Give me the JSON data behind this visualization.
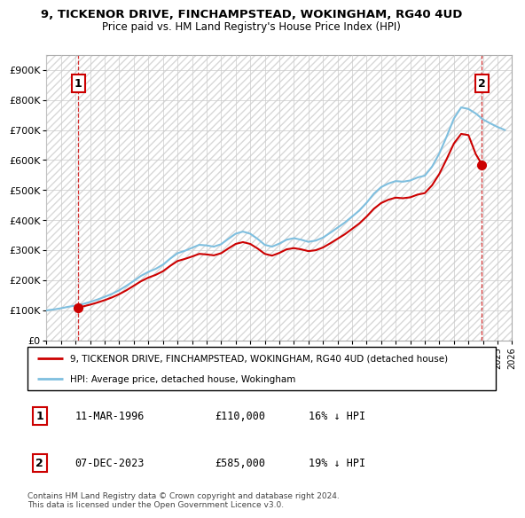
{
  "title_line1": "9, TICKENOR DRIVE, FINCHAMPSTEAD, WOKINGHAM, RG40 4UD",
  "title_line2": "Price paid vs. HM Land Registry's House Price Index (HPI)",
  "ylim": [
    0,
    950000
  ],
  "yticks": [
    0,
    100000,
    200000,
    300000,
    400000,
    500000,
    600000,
    700000,
    800000,
    900000
  ],
  "ytick_labels": [
    "£0",
    "£100K",
    "£200K",
    "£300K",
    "£400K",
    "£500K",
    "£600K",
    "£700K",
    "£800K",
    "£900K"
  ],
  "transaction1_year": 1996.18,
  "transaction1_price": 110000,
  "transaction2_year": 2023.93,
  "transaction2_price": 585000,
  "legend_line1": "9, TICKENOR DRIVE, FINCHAMPSTEAD, WOKINGHAM, RG40 4UD (detached house)",
  "legend_line2": "HPI: Average price, detached house, Wokingham",
  "table_row1": [
    "1",
    "11-MAR-1996",
    "£110,000",
    "16% ↓ HPI"
  ],
  "table_row2": [
    "2",
    "07-DEC-2023",
    "£585,000",
    "19% ↓ HPI"
  ],
  "footnote": "Contains HM Land Registry data © Crown copyright and database right 2024.\nThis data is licensed under the Open Government Licence v3.0.",
  "hpi_color": "#7fbfdf",
  "price_color": "#cc0000",
  "box_color": "#cc0000",
  "grid_color": "#cccccc",
  "hatch_color": "#d8d8d8",
  "years_hpi": [
    1994.0,
    1994.5,
    1995.0,
    1995.5,
    1996.0,
    1996.5,
    1997.0,
    1997.5,
    1998.0,
    1998.5,
    1999.0,
    1999.5,
    2000.0,
    2000.5,
    2001.0,
    2001.5,
    2002.0,
    2002.5,
    2003.0,
    2003.5,
    2004.0,
    2004.5,
    2005.0,
    2005.5,
    2006.0,
    2006.5,
    2007.0,
    2007.5,
    2008.0,
    2008.5,
    2009.0,
    2009.5,
    2010.0,
    2010.5,
    2011.0,
    2011.5,
    2012.0,
    2012.5,
    2013.0,
    2013.5,
    2014.0,
    2014.5,
    2015.0,
    2015.5,
    2016.0,
    2016.5,
    2017.0,
    2017.5,
    2018.0,
    2018.5,
    2019.0,
    2019.5,
    2020.0,
    2020.5,
    2021.0,
    2021.5,
    2022.0,
    2022.5,
    2023.0,
    2023.5,
    2024.0,
    2024.5,
    2025.0,
    2025.5
  ],
  "hpi_values": [
    100000,
    103000,
    107000,
    112000,
    116000,
    121000,
    128000,
    136000,
    145000,
    155000,
    167000,
    182000,
    198000,
    215000,
    228000,
    238000,
    252000,
    272000,
    290000,
    298000,
    308000,
    318000,
    316000,
    312000,
    320000,
    338000,
    355000,
    362000,
    355000,
    338000,
    318000,
    312000,
    322000,
    335000,
    340000,
    335000,
    328000,
    332000,
    342000,
    358000,
    375000,
    392000,
    412000,
    432000,
    458000,
    488000,
    510000,
    522000,
    530000,
    528000,
    532000,
    542000,
    548000,
    578000,
    622000,
    678000,
    738000,
    775000,
    770000,
    755000,
    735000,
    722000,
    710000,
    700000
  ],
  "years_red": [
    1996.18,
    1996.5,
    1997.0,
    1997.5,
    1998.0,
    1998.5,
    1999.0,
    1999.5,
    2000.0,
    2000.5,
    2001.0,
    2001.5,
    2002.0,
    2002.5,
    2003.0,
    2003.5,
    2004.0,
    2004.5,
    2005.0,
    2005.5,
    2006.0,
    2006.5,
    2007.0,
    2007.5,
    2008.0,
    2008.5,
    2009.0,
    2009.5,
    2010.0,
    2010.5,
    2011.0,
    2011.5,
    2012.0,
    2012.5,
    2013.0,
    2013.5,
    2014.0,
    2014.5,
    2015.0,
    2015.5,
    2016.0,
    2016.5,
    2017.0,
    2017.5,
    2018.0,
    2018.5,
    2019.0,
    2019.5,
    2020.0,
    2020.5,
    2021.0,
    2021.5,
    2022.0,
    2022.5,
    2023.0,
    2023.5,
    2023.93
  ],
  "red_values": [
    110000,
    113000,
    119000,
    126000,
    134000,
    143000,
    154000,
    167000,
    182000,
    197000,
    209000,
    218000,
    230000,
    248000,
    264000,
    271000,
    279000,
    288000,
    286000,
    283000,
    290000,
    306000,
    321000,
    327000,
    321000,
    306000,
    288000,
    282000,
    291000,
    303000,
    307000,
    303000,
    297000,
    300000,
    309000,
    323000,
    338000,
    353000,
    371000,
    389000,
    412000,
    438000,
    457000,
    468000,
    475000,
    473000,
    476000,
    485000,
    490000,
    516000,
    554000,
    603000,
    655000,
    687000,
    683000,
    620000,
    585000
  ]
}
